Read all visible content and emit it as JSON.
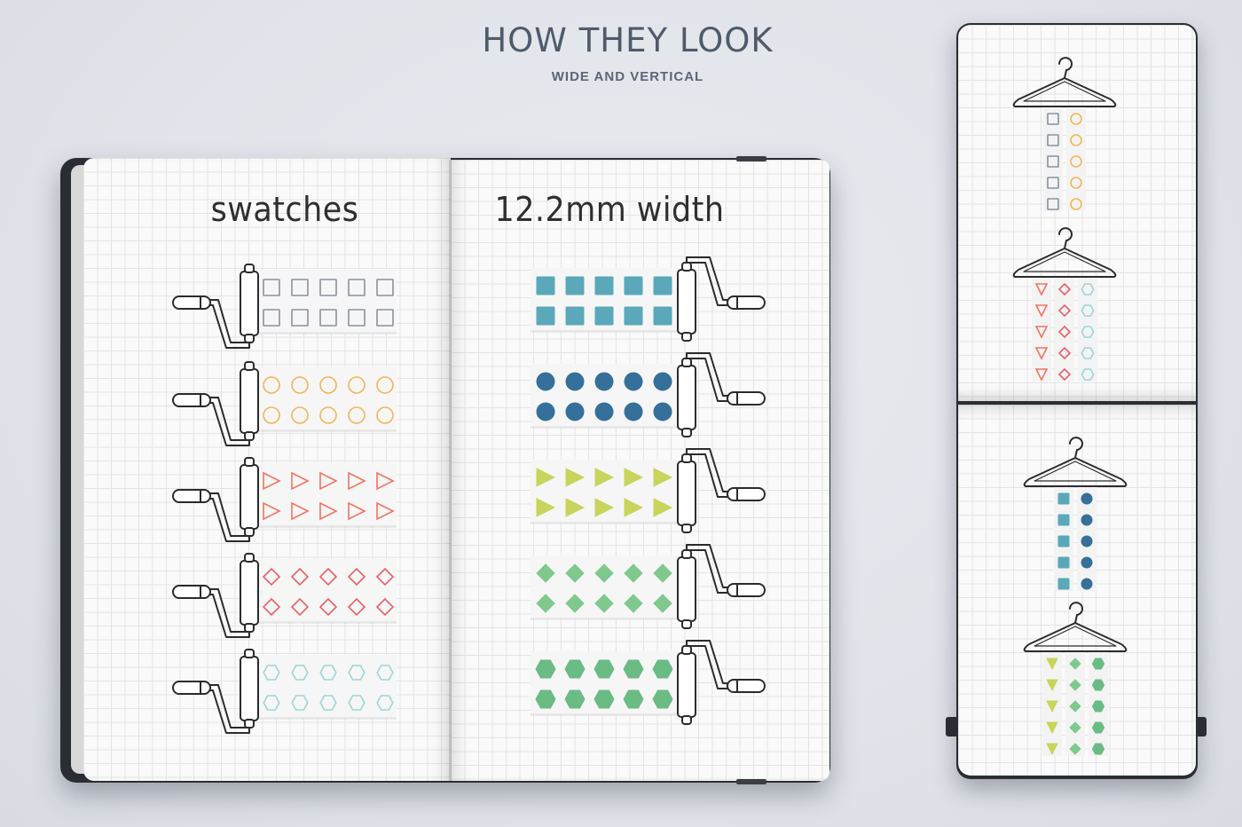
{
  "header": {
    "title": "HOW THEY LOOK",
    "subtitle": "WIDE AND VERTICAL"
  },
  "notebook": {
    "left_heading": "swatches",
    "right_heading": "12.2mm width"
  },
  "colors": {
    "gray": "#8a919e",
    "orange": "#f3b55a",
    "coral": "#ef7560",
    "red": "#e86164",
    "mint": "#9bd6d6",
    "teal": "#5aa8ba",
    "navy": "#35709a",
    "lime": "#c8d45c",
    "green": "#7fc98c",
    "emerald": "#6abb84"
  },
  "rollers_left": [
    {
      "shape": "square",
      "fill": false,
      "color": "gray"
    },
    {
      "shape": "circle",
      "fill": false,
      "color": "orange"
    },
    {
      "shape": "triangle-right",
      "fill": false,
      "color": "coral"
    },
    {
      "shape": "diamond",
      "fill": false,
      "color": "red"
    },
    {
      "shape": "hexagon",
      "fill": false,
      "color": "mint"
    }
  ],
  "rollers_right": [
    {
      "shape": "square",
      "fill": true,
      "color": "teal"
    },
    {
      "shape": "circle",
      "fill": true,
      "color": "navy"
    },
    {
      "shape": "triangle-right",
      "fill": true,
      "color": "lime"
    },
    {
      "shape": "diamond",
      "fill": true,
      "color": "green"
    },
    {
      "shape": "hexagon",
      "fill": true,
      "color": "emerald"
    }
  ],
  "hangers": [
    {
      "strips": [
        {
          "shape": "square",
          "fill": false,
          "color": "gray"
        },
        {
          "shape": "circle",
          "fill": false,
          "color": "orange"
        }
      ]
    },
    {
      "strips": [
        {
          "shape": "triangle-down",
          "fill": false,
          "color": "coral"
        },
        {
          "shape": "diamond",
          "fill": false,
          "color": "red"
        },
        {
          "shape": "hexagon",
          "fill": false,
          "color": "mint"
        }
      ]
    },
    {
      "strips": [
        {
          "shape": "square",
          "fill": true,
          "color": "teal"
        },
        {
          "shape": "circle",
          "fill": true,
          "color": "navy"
        }
      ]
    },
    {
      "strips": [
        {
          "shape": "triangle-down",
          "fill": true,
          "color": "lime"
        },
        {
          "shape": "diamond",
          "fill": true,
          "color": "green"
        },
        {
          "shape": "hexagon",
          "fill": true,
          "color": "emerald"
        }
      ]
    }
  ]
}
